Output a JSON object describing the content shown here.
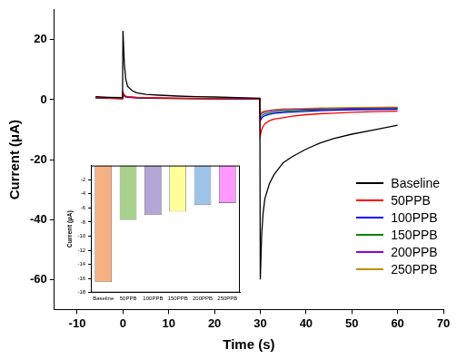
{
  "chart_data": [
    {
      "type": "line",
      "x_label": "Time (s)",
      "y_label": "Current (μA)",
      "x": [
        -6,
        -3,
        -0.1,
        0,
        0.3,
        0.6,
        1,
        2,
        3,
        5,
        8,
        12,
        16,
        20,
        25,
        29.9,
        30,
        30.3,
        30.6,
        31,
        32,
        33,
        35,
        37,
        40,
        43,
        46,
        50,
        55,
        60
      ],
      "series": [
        {
          "name": "Baseline",
          "color": "#000000",
          "values": [
            1.0,
            0.8,
            0.7,
            23,
            12,
            7,
            4.5,
            3,
            2.3,
            1.8,
            1.5,
            1.2,
            1.0,
            0.9,
            0.7,
            0.5,
            -60,
            -45,
            -38,
            -33,
            -28,
            -25,
            -21,
            -19,
            -16.5,
            -14.5,
            -13,
            -11.5,
            -10,
            -8.5
          ]
        },
        {
          "name": "50PPB",
          "color": "#ff0000",
          "values": [
            0.8,
            0.6,
            0.4,
            2.5,
            1.5,
            1.2,
            1.0,
            0.9,
            0.8,
            0.7,
            0.6,
            0.5,
            0.5,
            0.4,
            0.4,
            0.3,
            -12,
            -10,
            -9,
            -8,
            -7,
            -6.5,
            -6,
            -5.5,
            -5,
            -4.7,
            -4.5,
            -4.2,
            -4,
            -3.8
          ]
        },
        {
          "name": "100PPB",
          "color": "#0000ff",
          "values": [
            0.7,
            0.5,
            0.4,
            2.2,
            1.4,
            1.1,
            0.9,
            0.8,
            0.7,
            0.6,
            0.5,
            0.5,
            0.4,
            0.4,
            0.3,
            0.3,
            -7,
            -6.2,
            -5.7,
            -5.3,
            -4.9,
            -4.6,
            -4.3,
            -4.1,
            -3.9,
            -3.7,
            -3.5,
            -3.4,
            -3.3,
            -3.2
          ]
        },
        {
          "name": "150PPB",
          "color": "#008000",
          "values": [
            0.7,
            0.5,
            0.4,
            2.0,
            1.3,
            1.0,
            0.9,
            0.8,
            0.7,
            0.6,
            0.5,
            0.4,
            0.4,
            0.3,
            0.3,
            0.3,
            -6,
            -5.4,
            -5,
            -4.7,
            -4.4,
            -4.1,
            -3.9,
            -3.7,
            -3.5,
            -3.4,
            -3.3,
            -3.2,
            -3.1,
            -3
          ]
        },
        {
          "name": "200PPB",
          "color": "#9400d3",
          "values": [
            0.6,
            0.5,
            0.4,
            1.8,
            1.2,
            1.0,
            0.8,
            0.7,
            0.6,
            0.5,
            0.5,
            0.4,
            0.4,
            0.3,
            0.3,
            0.2,
            -5,
            -4.6,
            -4.3,
            -4.1,
            -3.8,
            -3.6,
            -3.4,
            -3.3,
            -3.2,
            -3.1,
            -3,
            -2.9,
            -2.85,
            -2.8
          ]
        },
        {
          "name": "250PPB",
          "color": "#c09000",
          "values": [
            0.6,
            0.4,
            0.3,
            1.6,
            1.1,
            0.9,
            0.8,
            0.7,
            0.6,
            0.5,
            0.4,
            0.4,
            0.3,
            0.3,
            0.2,
            0.2,
            -4.5,
            -4.1,
            -3.9,
            -3.7,
            -3.5,
            -3.3,
            -3.1,
            -3,
            -2.9,
            -2.8,
            -2.7,
            -2.6,
            -2.55,
            -2.5
          ]
        }
      ],
      "xlim": [
        -15,
        70
      ],
      "xticks": [
        -10,
        0,
        10,
        20,
        30,
        40,
        50,
        60,
        70
      ],
      "ylim": [
        -70,
        30
      ],
      "yticks": [
        -60,
        -40,
        -20,
        0,
        20
      ],
      "grid": false,
      "legend": "right"
    },
    {
      "type": "bar",
      "y_label": "Current (μA)",
      "categories": [
        "Baseline",
        "50PPB",
        "100PPB",
        "150PPB",
        "200PPB",
        "250PPB"
      ],
      "values": [
        -16.5,
        -7.7,
        -7.0,
        -6.5,
        -5.6,
        -5.3
      ],
      "colors": [
        "#f4b183",
        "#a9d18e",
        "#b4a7d6",
        "#ffff99",
        "#9dc3e6",
        "#ff99ff"
      ],
      "ylim": [
        -18,
        0
      ],
      "yticks": [
        -2,
        -4,
        -6,
        -8,
        -10,
        -12,
        -14,
        -16,
        -18
      ],
      "grid": false
    }
  ]
}
